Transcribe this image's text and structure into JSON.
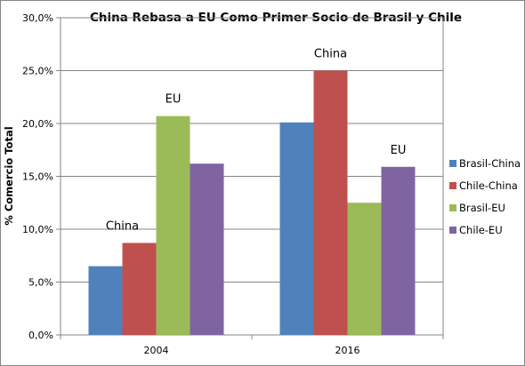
{
  "chart_data": {
    "type": "bar",
    "title": "China Rebasa a EU Como Primer Socio de Brasil y Chile",
    "xlabel": "",
    "ylabel": "% Comercio Total",
    "categories": [
      "2004",
      "2016"
    ],
    "ylim": [
      0,
      30
    ],
    "yticks": [
      0,
      5,
      10,
      15,
      20,
      25,
      30
    ],
    "ytick_labels": [
      "0,0%",
      "5,0%",
      "10,0%",
      "15,0%",
      "20,0%",
      "25,0%",
      "30,0%"
    ],
    "grid": true,
    "legend_position": "right",
    "series": [
      {
        "name": "Brasil-China",
        "color": "#4f81bd",
        "values": [
          6.5,
          20.1
        ]
      },
      {
        "name": "Chile-China",
        "color": "#c0504d",
        "values": [
          8.7,
          25.0
        ]
      },
      {
        "name": "Brasil-EU",
        "color": "#9bbb59",
        "values": [
          20.7,
          12.5
        ]
      },
      {
        "name": "Chile-EU",
        "color": "#8064a2",
        "values": [
          16.2,
          15.9
        ]
      }
    ],
    "annotations": [
      {
        "text": "China",
        "category": "2004"
      },
      {
        "text": "EU",
        "category": "2004"
      },
      {
        "text": "China",
        "category": "2016"
      },
      {
        "text": "EU",
        "category": "2016"
      }
    ]
  }
}
